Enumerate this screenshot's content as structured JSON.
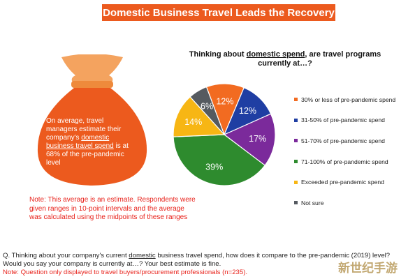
{
  "title": "Domestic Business Travel Leads the Recovery",
  "bag_text": {
    "part1": "On average, travel managers estimate their company's ",
    "underlined": "domestic business travel spend",
    "part2": " is at 68% of the pre-pandemic level"
  },
  "note": "Note: This average is an estimate. Respondents were given ranges in 10-point intervals and the average was calculated using the midpoints of these ranges",
  "chart_heading": {
    "part1": "Thinking about ",
    "underlined": "domestic spend",
    "part2": ", are travel programs currently at…?"
  },
  "chart_data": {
    "type": "pie",
    "title": "Thinking about domestic spend, are travel programs currently at…?",
    "slices": [
      {
        "label": "30% or less of pre-pandemic spend",
        "value": 12,
        "display": "12%",
        "color": "#f26b21"
      },
      {
        "label": "31-50% of pre-pandemic spend",
        "value": 12,
        "display": "12%",
        "color": "#1f3ea3"
      },
      {
        "label": "51-70% of pre-pandemic spend",
        "value": 17,
        "display": "17%",
        "color": "#7b2a9b"
      },
      {
        "label": "71-100% of pre-pandemic spend",
        "value": 39,
        "display": "39%",
        "color": "#2e8b2e"
      },
      {
        "label": "Exceeded pre-pandemic spend",
        "value": 14,
        "display": "14%",
        "color": "#f7b614"
      },
      {
        "label": "Not sure",
        "value": 6,
        "display": "6%",
        "color": "#555a60"
      }
    ],
    "legend_position": "right"
  },
  "question": {
    "line1_a": "Q. Thinking about your company's current ",
    "line1_u": "domestic",
    "line1_b": " business travel spend, how does it compare to the pre-pandemic (2019) level?",
    "line2": "Would you say your company is currently at…? Your best estimate is fine.",
    "line3": "Note: Question only displayed to travel buyers/procurement professionals (n=235)."
  },
  "watermark": "新世纪手游",
  "colors": {
    "accent": "#ec5a1e",
    "note_red": "#e8211a"
  }
}
